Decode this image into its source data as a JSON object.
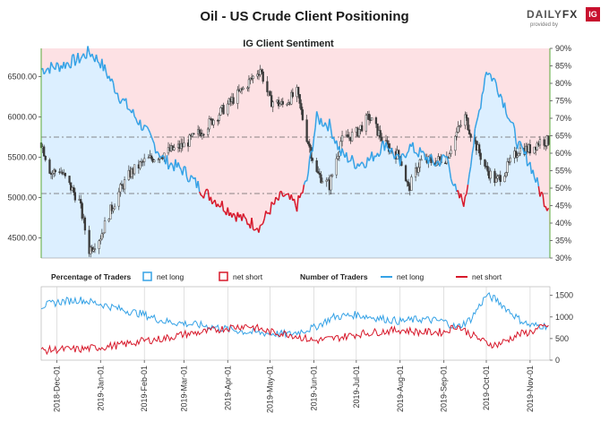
{
  "header": {
    "title": "Oil - US Crude Client Positioning",
    "brand_daily": "DAILY",
    "brand_fx": "FX",
    "brand_sub": "provided by",
    "brand_ig": "IG"
  },
  "colors": {
    "long_fill": "#dcefff",
    "short_fill": "#fde1e4",
    "long_line": "#35a2e6",
    "short_line": "#d7182a",
    "candle": "#3a3a3a",
    "grid": "#999999",
    "axis_green": "#5aa83a"
  },
  "chart_data": [
    {
      "type": "candlestick",
      "title": "IG Client Sentiment",
      "left_axis": {
        "ticks": [
          4500,
          5000,
          5500,
          6000,
          6500
        ],
        "tick_labels": [
          "4500.00",
          "5000.00",
          "5500.00",
          "6000.00",
          "6500.00"
        ],
        "range": [
          4250,
          6850
        ]
      },
      "right_axis": {
        "ticks": [
          30,
          35,
          40,
          45,
          50,
          55,
          60,
          65,
          70,
          75,
          80,
          85,
          90
        ],
        "tick_labels": [
          "30%",
          "35%",
          "40%",
          "45%",
          "50%",
          "55%",
          "60%",
          "65%",
          "70%",
          "75%",
          "80%",
          "85%",
          "90%"
        ],
        "range": [
          30,
          90
        ]
      },
      "reference_lines": [
        5050,
        5750
      ],
      "price_keypoints": [
        [
          "2018-11-20",
          5680
        ],
        [
          "2018-11-27",
          5300
        ],
        [
          "2018-12-03",
          5350
        ],
        [
          "2018-12-10",
          5150
        ],
        [
          "2018-12-17",
          4950
        ],
        [
          "2018-12-24",
          4350
        ],
        [
          "2019-01-01",
          4520
        ],
        [
          "2019-01-07",
          4800
        ],
        [
          "2019-01-15",
          5100
        ],
        [
          "2019-01-22",
          5300
        ],
        [
          "2019-02-01",
          5450
        ],
        [
          "2019-02-15",
          5550
        ],
        [
          "2019-03-01",
          5650
        ],
        [
          "2019-03-15",
          5850
        ],
        [
          "2019-04-01",
          6150
        ],
        [
          "2019-04-12",
          6350
        ],
        [
          "2019-04-24",
          6600
        ],
        [
          "2019-05-01",
          6200
        ],
        [
          "2019-05-10",
          6150
        ],
        [
          "2019-05-20",
          6300
        ],
        [
          "2019-05-27",
          5750
        ],
        [
          "2019-06-03",
          5300
        ],
        [
          "2019-06-12",
          5150
        ],
        [
          "2019-06-20",
          5700
        ],
        [
          "2019-07-01",
          5800
        ],
        [
          "2019-07-10",
          6000
        ],
        [
          "2019-07-22",
          5650
        ],
        [
          "2019-08-01",
          5500
        ],
        [
          "2019-08-07",
          5100
        ],
        [
          "2019-08-15",
          5450
        ],
        [
          "2019-08-26",
          5450
        ],
        [
          "2019-09-03",
          5500
        ],
        [
          "2019-09-10",
          5800
        ],
        [
          "2019-09-16",
          6000
        ],
        [
          "2019-09-20",
          5800
        ],
        [
          "2019-10-01",
          5350
        ],
        [
          "2019-10-08",
          5200
        ],
        [
          "2019-10-15",
          5350
        ],
        [
          "2019-10-24",
          5600
        ],
        [
          "2019-11-01",
          5600
        ],
        [
          "2019-11-08",
          5700
        ],
        [
          "2019-11-13",
          5700
        ]
      ],
      "sentiment_keypoints": [
        [
          "2018-11-20",
          84
        ],
        [
          "2018-12-03",
          85
        ],
        [
          "2018-12-17",
          87
        ],
        [
          "2018-12-24",
          89
        ],
        [
          "2019-01-01",
          86
        ],
        [
          "2019-01-15",
          76
        ],
        [
          "2019-02-01",
          67
        ],
        [
          "2019-02-15",
          58
        ],
        [
          "2019-03-01",
          55
        ],
        [
          "2019-03-15",
          49
        ],
        [
          "2019-04-01",
          44
        ],
        [
          "2019-04-12",
          41
        ],
        [
          "2019-04-24",
          39
        ],
        [
          "2019-05-01",
          44
        ],
        [
          "2019-05-10",
          48
        ],
        [
          "2019-05-20",
          45
        ],
        [
          "2019-05-27",
          52
        ],
        [
          "2019-06-03",
          70
        ],
        [
          "2019-06-12",
          68
        ],
        [
          "2019-06-20",
          60
        ],
        [
          "2019-07-01",
          57
        ],
        [
          "2019-07-10",
          58
        ],
        [
          "2019-07-22",
          63
        ],
        [
          "2019-08-01",
          57
        ],
        [
          "2019-08-07",
          62
        ],
        [
          "2019-08-15",
          60
        ],
        [
          "2019-08-26",
          57
        ],
        [
          "2019-09-03",
          59
        ],
        [
          "2019-09-10",
          48
        ],
        [
          "2019-09-16",
          46
        ],
        [
          "2019-09-20",
          58
        ],
        [
          "2019-10-01",
          84
        ],
        [
          "2019-10-08",
          80
        ],
        [
          "2019-10-15",
          73
        ],
        [
          "2019-10-24",
          62
        ],
        [
          "2019-11-01",
          57
        ],
        [
          "2019-11-08",
          49
        ],
        [
          "2019-11-13",
          45
        ]
      ]
    },
    {
      "type": "line",
      "legend": {
        "percentage_label": "Percentage of Traders",
        "number_label": "Number of Traders",
        "net_long": "net long",
        "net_short": "net short"
      },
      "y_ticks": [
        0,
        500,
        1000,
        1500
      ],
      "y_tick_labels": [
        "0",
        "500",
        "1000",
        "1500"
      ],
      "y_range": [
        0,
        1700
      ],
      "series": [
        {
          "name": "net long",
          "keypoints": [
            [
              "2018-11-20",
              1250
            ],
            [
              "2018-12-03",
              1350
            ],
            [
              "2018-12-17",
              1400
            ],
            [
              "2019-01-01",
              1300
            ],
            [
              "2019-01-15",
              1180
            ],
            [
              "2019-02-01",
              1050
            ],
            [
              "2019-02-15",
              900
            ],
            [
              "2019-03-01",
              850
            ],
            [
              "2019-03-15",
              800
            ],
            [
              "2019-04-01",
              720
            ],
            [
              "2019-04-15",
              650
            ],
            [
              "2019-05-01",
              620
            ],
            [
              "2019-05-15",
              600
            ],
            [
              "2019-06-01",
              750
            ],
            [
              "2019-06-15",
              1000
            ],
            [
              "2019-07-01",
              1050
            ],
            [
              "2019-07-15",
              980
            ],
            [
              "2019-08-01",
              900
            ],
            [
              "2019-08-15",
              950
            ],
            [
              "2019-09-01",
              900
            ],
            [
              "2019-09-10",
              750
            ],
            [
              "2019-09-20",
              950
            ],
            [
              "2019-10-01",
              1500
            ],
            [
              "2019-10-08",
              1400
            ],
            [
              "2019-10-15",
              1200
            ],
            [
              "2019-10-24",
              950
            ],
            [
              "2019-11-01",
              800
            ],
            [
              "2019-11-13",
              800
            ]
          ]
        },
        {
          "name": "net short",
          "keypoints": [
            [
              "2018-11-20",
              220
            ],
            [
              "2018-12-03",
              250
            ],
            [
              "2018-12-17",
              250
            ],
            [
              "2019-01-01",
              300
            ],
            [
              "2019-01-15",
              350
            ],
            [
              "2019-02-01",
              450
            ],
            [
              "2019-02-15",
              500
            ],
            [
              "2019-03-01",
              600
            ],
            [
              "2019-03-15",
              650
            ],
            [
              "2019-04-01",
              750
            ],
            [
              "2019-04-15",
              800
            ],
            [
              "2019-05-01",
              650
            ],
            [
              "2019-05-15",
              600
            ],
            [
              "2019-06-01",
              450
            ],
            [
              "2019-06-15",
              500
            ],
            [
              "2019-07-01",
              600
            ],
            [
              "2019-07-15",
              650
            ],
            [
              "2019-08-01",
              700
            ],
            [
              "2019-08-15",
              650
            ],
            [
              "2019-09-01",
              650
            ],
            [
              "2019-09-10",
              800
            ],
            [
              "2019-09-20",
              600
            ],
            [
              "2019-10-01",
              400
            ],
            [
              "2019-10-08",
              350
            ],
            [
              "2019-10-15",
              450
            ],
            [
              "2019-10-24",
              600
            ],
            [
              "2019-11-01",
              650
            ],
            [
              "2019-11-13",
              800
            ]
          ]
        }
      ]
    }
  ],
  "x_axis": {
    "ticks": [
      "2018-12-01",
      "2019-01-01",
      "2019-02-01",
      "2019-03-01",
      "2019-04-01",
      "2019-05-01",
      "2019-06-01",
      "2019-07-01",
      "2019-08-01",
      "2019-09-01",
      "2019-10-01",
      "2019-11-01"
    ],
    "tick_labels": [
      "2018-Dec-01",
      "2019-Jan-01",
      "2019-Feb-01",
      "2019-Mar-01",
      "2019-Apr-01",
      "2019-May-01",
      "2019-Jun-01",
      "2019-Jul-01",
      "2019-Aug-01",
      "2019-Sep-01",
      "2019-Oct-01",
      "2019-Nov-01"
    ],
    "range": [
      "2018-11-20",
      "2019-11-15"
    ]
  }
}
